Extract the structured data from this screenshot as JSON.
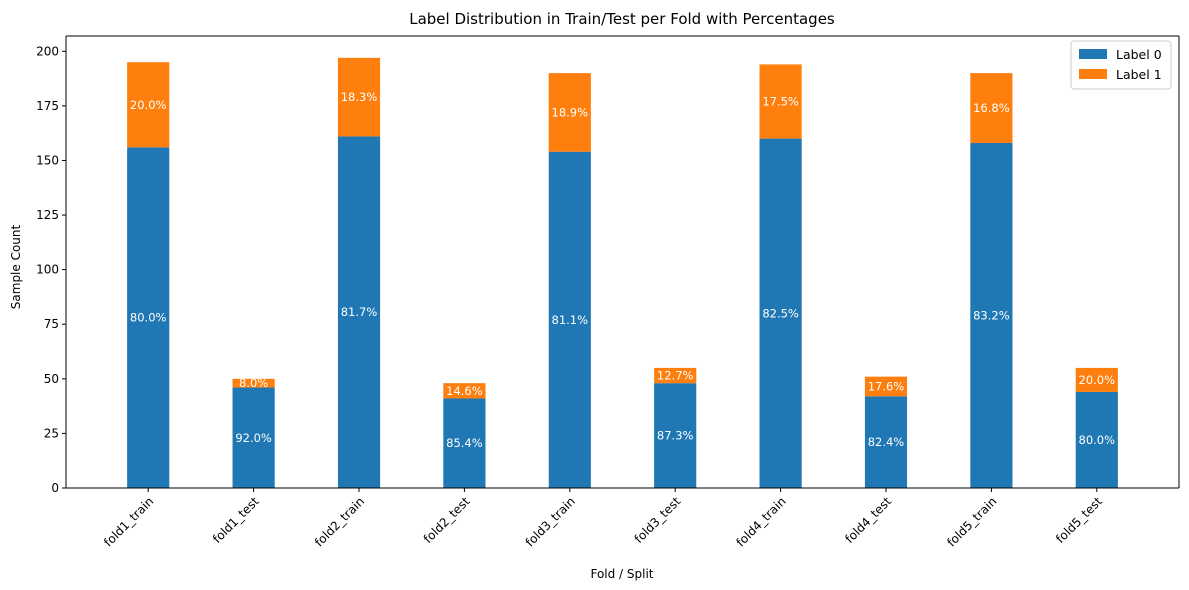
{
  "chart_data": {
    "type": "bar",
    "stacked": true,
    "title": "Label Distribution in Train/Test per Fold with Percentages",
    "xlabel": "Fold / Split",
    "ylabel": "Sample Count",
    "ylim": [
      0,
      207
    ],
    "yticks": [
      0,
      25,
      50,
      75,
      100,
      125,
      150,
      175,
      200
    ],
    "categories": [
      "fold1_train",
      "fold1_test",
      "fold2_train",
      "fold2_test",
      "fold3_train",
      "fold3_test",
      "fold4_train",
      "fold4_test",
      "fold5_train",
      "fold5_test"
    ],
    "series": [
      {
        "name": "Label 0",
        "color": "#1f77b4",
        "values": [
          156,
          46,
          161,
          41,
          154,
          48,
          160,
          42,
          158,
          44
        ],
        "labels": [
          "80.0%",
          "92.0%",
          "81.7%",
          "85.4%",
          "81.1%",
          "87.3%",
          "82.5%",
          "82.4%",
          "83.2%",
          "80.0%"
        ]
      },
      {
        "name": "Label 1",
        "color": "#ff7f0e",
        "values": [
          39,
          4,
          36,
          7,
          36,
          7,
          34,
          9,
          32,
          11
        ],
        "labels": [
          "20.0%",
          "8.0%",
          "18.3%",
          "14.6%",
          "18.9%",
          "12.7%",
          "17.5%",
          "17.6%",
          "16.8%",
          "20.0%"
        ]
      }
    ],
    "legend_position": "top-right",
    "grid": false
  }
}
